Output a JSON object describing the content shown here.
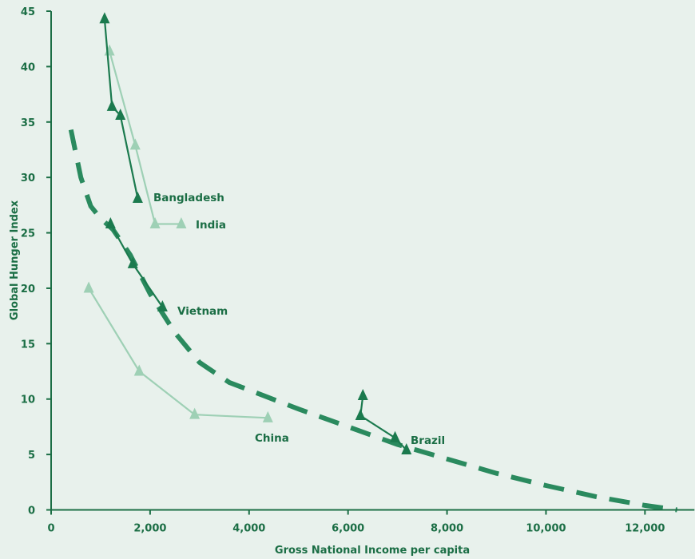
{
  "chart_data": {
    "type": "scatter",
    "title": "",
    "xlabel": "Gross National Income per capita",
    "ylabel": "Global Hunger Index",
    "xlim": [
      0,
      13000
    ],
    "ylim": [
      0,
      45
    ],
    "x_ticks": [
      0,
      2000,
      4000,
      6000,
      8000,
      10000,
      12000
    ],
    "x_tick_labels": [
      "0",
      "2,000",
      "4,000",
      "6,000",
      "8,000",
      "10,000",
      "12,000"
    ],
    "y_ticks": [
      0,
      5,
      10,
      15,
      20,
      25,
      30,
      35,
      40,
      45
    ],
    "y_tick_labels": [
      "0",
      "5",
      "10",
      "15",
      "20",
      "25",
      "30",
      "35",
      "40",
      "45"
    ],
    "grid": false,
    "legend": "none",
    "colors": {
      "dark": "#1b7a4e",
      "light": "#9ed0b5",
      "trend": "#2a8a5e",
      "axis": "#1b6e45"
    },
    "series": [
      {
        "name": "Bangladesh",
        "style": "dark",
        "x": [
          1080,
          1230,
          1400,
          1750
        ],
        "y": [
          44.3,
          36.4,
          35.6,
          28.1
        ]
      },
      {
        "name": "India",
        "style": "light",
        "x": [
          1180,
          1700,
          2100,
          2630
        ],
        "y": [
          41.4,
          32.9,
          25.8,
          25.8
        ]
      },
      {
        "name": "Vietnam",
        "style": "dark",
        "x": [
          1200,
          1650,
          2250
        ],
        "y": [
          25.8,
          22.2,
          18.3
        ]
      },
      {
        "name": "China",
        "style": "light",
        "x": [
          760,
          1780,
          2900,
          4380
        ],
        "y": [
          20.0,
          12.5,
          8.6,
          8.3
        ]
      },
      {
        "name": "Brazil",
        "style": "dark",
        "x": [
          6300,
          6250,
          6950,
          7180
        ],
        "y": [
          10.3,
          8.5,
          6.5,
          5.4
        ]
      }
    ],
    "trend": {
      "style": "dashed",
      "x": [
        400,
        600,
        800,
        1000,
        1250,
        1600,
        2000,
        2500,
        3000,
        3600,
        4300,
        5000,
        6000,
        7000,
        8000,
        9000,
        10000,
        11000,
        12000,
        12650
      ],
      "y": [
        34.3,
        30.0,
        27.4,
        26.3,
        25.3,
        23.0,
        19.5,
        16.0,
        13.3,
        11.5,
        10.3,
        9.1,
        7.5,
        5.9,
        4.6,
        3.3,
        2.2,
        1.2,
        0.4,
        0.0
      ]
    }
  }
}
